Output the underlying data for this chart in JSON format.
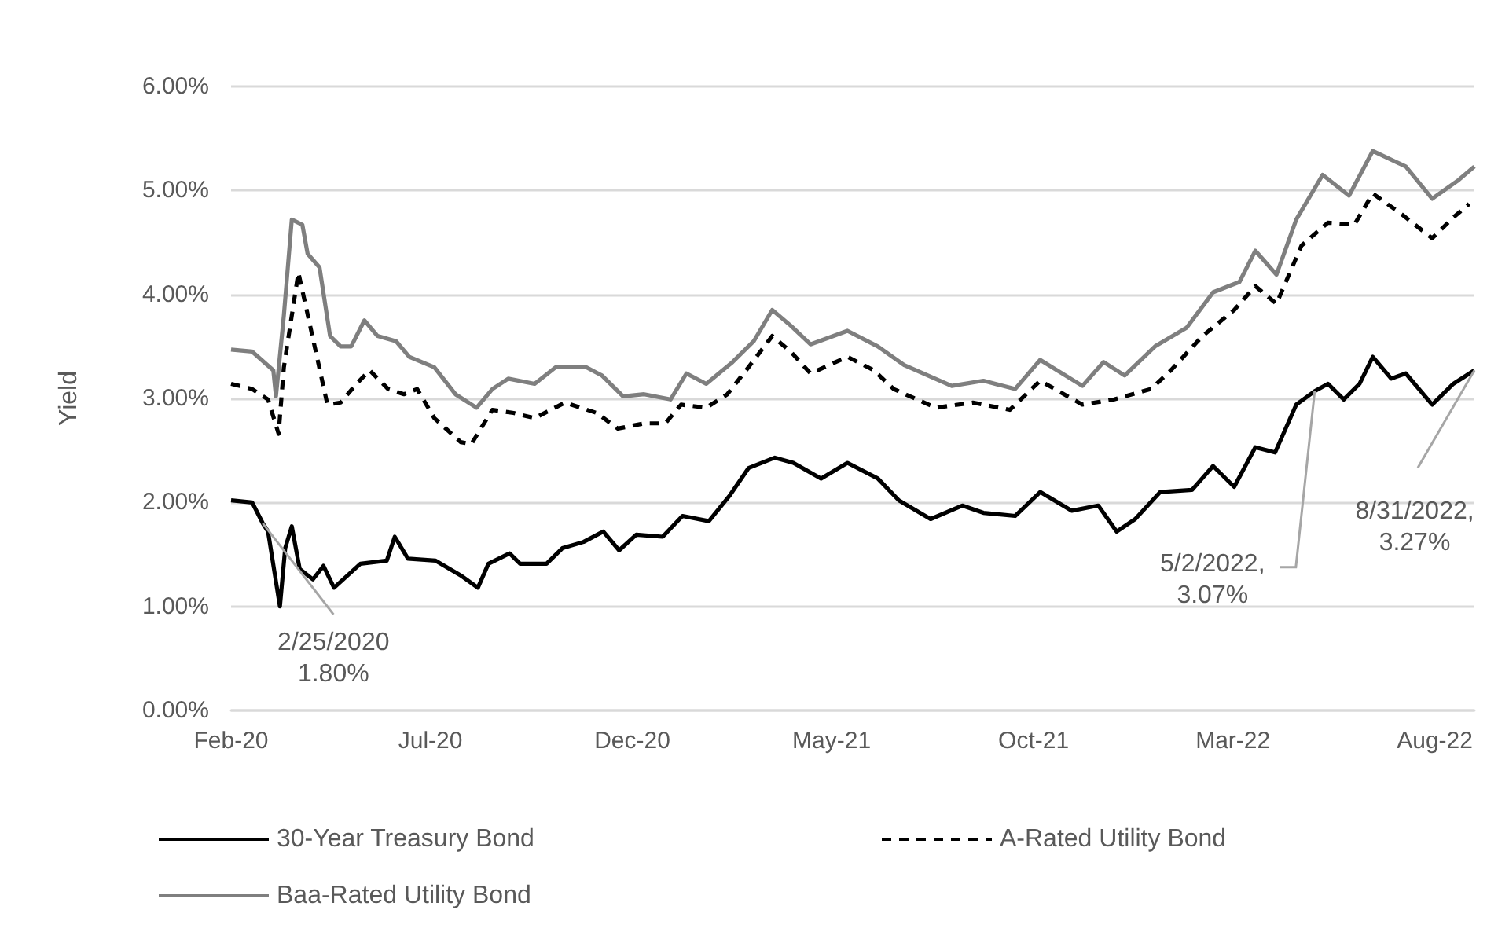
{
  "chart_data": {
    "type": "line",
    "ylabel": "Yield",
    "xlim": [
      "2020-02-01",
      "2022-08-31"
    ],
    "xticks": [
      {
        "value": "2020-02-01",
        "label": "Feb-20"
      },
      {
        "value": "2020-07-01",
        "label": "Jul-20"
      },
      {
        "value": "2020-12-01",
        "label": "Dec-20"
      },
      {
        "value": "2021-05-01",
        "label": "May-21"
      },
      {
        "value": "2021-10-01",
        "label": "Oct-21"
      },
      {
        "value": "2022-03-01",
        "label": "Mar-22"
      },
      {
        "value": "2022-08-01",
        "label": "Aug-22"
      }
    ],
    "ylim": [
      0,
      6
    ],
    "yticks": [
      {
        "value": 0,
        "label": "0.00%"
      },
      {
        "value": 1,
        "label": "1.00%"
      },
      {
        "value": 2,
        "label": "2.00%"
      },
      {
        "value": 3,
        "label": "3.00%"
      },
      {
        "value": 4,
        "label": "4.00%"
      },
      {
        "value": 5,
        "label": "5.00%"
      },
      {
        "value": 6,
        "label": "6.00%"
      }
    ],
    "grid": "y",
    "legend": "bottom",
    "marker": "none",
    "series": [
      {
        "name": "30-Year Treasury Bond",
        "color": "#000000",
        "line_style": "solid",
        "x": [
          "2020-02-01",
          "2020-02-17",
          "2020-02-25",
          "2020-02-29",
          "2020-03-09",
          "2020-03-13",
          "2020-03-18",
          "2020-03-24",
          "2020-04-03",
          "2020-04-11",
          "2020-04-19",
          "2020-05-09",
          "2020-05-29",
          "2020-06-04",
          "2020-06-14",
          "2020-07-05",
          "2020-07-25",
          "2020-08-06",
          "2020-08-14",
          "2020-08-30",
          "2020-09-07",
          "2020-09-27",
          "2020-10-09",
          "2020-10-25",
          "2020-11-09",
          "2020-11-21",
          "2020-12-04",
          "2020-12-24",
          "2021-01-08",
          "2021-01-28",
          "2021-02-13",
          "2021-02-27",
          "2021-03-19",
          "2021-04-02",
          "2021-04-23",
          "2021-05-13",
          "2021-06-05",
          "2021-06-21",
          "2021-07-15",
          "2021-08-08",
          "2021-08-24",
          "2021-09-17",
          "2021-10-06",
          "2021-10-30",
          "2021-11-19",
          "2021-12-03",
          "2021-12-17",
          "2022-01-05",
          "2022-01-29",
          "2022-02-14",
          "2022-03-02",
          "2022-03-18",
          "2022-04-02",
          "2022-04-18",
          "2022-05-02",
          "2022-05-12",
          "2022-05-24",
          "2022-06-05",
          "2022-06-15",
          "2022-06-29",
          "2022-07-10",
          "2022-07-30",
          "2022-08-15",
          "2022-08-31"
        ],
        "values": [
          2.02,
          2.0,
          1.8,
          1.72,
          1.0,
          1.56,
          1.77,
          1.36,
          1.26,
          1.39,
          1.18,
          1.41,
          1.44,
          1.67,
          1.46,
          1.44,
          1.29,
          1.18,
          1.41,
          1.51,
          1.41,
          1.41,
          1.56,
          1.62,
          1.72,
          1.54,
          1.69,
          1.67,
          1.87,
          1.82,
          2.07,
          2.33,
          2.43,
          2.38,
          2.23,
          2.38,
          2.23,
          2.02,
          1.84,
          1.97,
          1.9,
          1.87,
          2.1,
          1.92,
          1.97,
          1.72,
          1.84,
          2.1,
          2.12,
          2.35,
          2.15,
          2.53,
          2.48,
          2.94,
          3.07,
          3.14,
          2.99,
          3.14,
          3.4,
          3.19,
          3.24,
          2.94,
          3.14,
          3.27
        ]
      },
      {
        "name": "A-Rated Utility Bond",
        "color": "#000000",
        "line_style": "dashed",
        "x": [
          "2020-02-01",
          "2020-02-17",
          "2020-02-29",
          "2020-03-08",
          "2020-03-12",
          "2020-03-23",
          "2020-03-31",
          "2020-04-14",
          "2020-04-24",
          "2020-05-06",
          "2020-05-16",
          "2020-05-30",
          "2020-06-11",
          "2020-06-21",
          "2020-07-04",
          "2020-07-24",
          "2020-08-01",
          "2020-08-17",
          "2020-09-02",
          "2020-09-18",
          "2020-10-11",
          "2020-11-04",
          "2020-11-20",
          "2020-12-10",
          "2020-12-26",
          "2021-01-07",
          "2021-01-26",
          "2021-02-11",
          "2021-02-27",
          "2021-03-17",
          "2021-03-31",
          "2021-04-15",
          "2021-05-13",
          "2021-06-02",
          "2021-06-17",
          "2021-07-19",
          "2021-08-16",
          "2021-09-13",
          "2021-10-06",
          "2021-11-07",
          "2021-12-01",
          "2021-12-29",
          "2022-01-13",
          "2022-02-06",
          "2022-03-02",
          "2022-03-18",
          "2022-04-03",
          "2022-04-22",
          "2022-05-12",
          "2022-06-01",
          "2022-06-15",
          "2022-07-07",
          "2022-07-30",
          "2022-08-15",
          "2022-08-27"
        ],
        "values": [
          3.14,
          3.09,
          2.99,
          2.66,
          3.3,
          4.21,
          3.75,
          2.94,
          2.96,
          3.14,
          3.27,
          3.09,
          3.04,
          3.09,
          2.81,
          2.58,
          2.56,
          2.89,
          2.86,
          2.81,
          2.96,
          2.86,
          2.71,
          2.76,
          2.76,
          2.94,
          2.91,
          3.04,
          3.3,
          3.6,
          3.45,
          3.24,
          3.4,
          3.27,
          3.09,
          2.91,
          2.96,
          2.89,
          3.17,
          2.94,
          2.99,
          3.09,
          3.27,
          3.6,
          3.85,
          4.08,
          3.91,
          4.47,
          4.69,
          4.67,
          4.97,
          4.77,
          4.54,
          4.74,
          4.87
        ]
      },
      {
        "name": "Baa-Rated Utility Bond",
        "color": "#7f7f7f",
        "line_style": "solid",
        "x": [
          "2020-02-01",
          "2020-02-17",
          "2020-03-04",
          "2020-03-06",
          "2020-03-12",
          "2020-03-18",
          "2020-03-26",
          "2020-03-30",
          "2020-04-08",
          "2020-04-16",
          "2020-04-24",
          "2020-05-02",
          "2020-05-12",
          "2020-05-22",
          "2020-06-05",
          "2020-06-15",
          "2020-07-04",
          "2020-07-20",
          "2020-08-05",
          "2020-08-17",
          "2020-08-29",
          "2020-09-18",
          "2020-10-04",
          "2020-10-27",
          "2020-11-08",
          "2020-11-24",
          "2020-12-10",
          "2020-12-30",
          "2021-01-11",
          "2021-01-26",
          "2021-02-15",
          "2021-03-03",
          "2021-03-17",
          "2021-03-31",
          "2021-04-15",
          "2021-05-13",
          "2021-06-05",
          "2021-06-25",
          "2021-07-31",
          "2021-08-24",
          "2021-09-17",
          "2021-10-06",
          "2021-11-07",
          "2021-11-23",
          "2021-12-09",
          "2022-01-01",
          "2022-01-25",
          "2022-02-14",
          "2022-03-06",
          "2022-03-18",
          "2022-04-03",
          "2022-04-18",
          "2022-05-08",
          "2022-05-28",
          "2022-06-15",
          "2022-07-10",
          "2022-07-30",
          "2022-08-19",
          "2022-08-31"
        ],
        "values": [
          3.47,
          3.45,
          3.27,
          3.02,
          3.8,
          4.72,
          4.67,
          4.39,
          4.26,
          3.6,
          3.5,
          3.5,
          3.75,
          3.6,
          3.55,
          3.4,
          3.3,
          3.04,
          2.91,
          3.09,
          3.19,
          3.14,
          3.3,
          3.3,
          3.22,
          3.02,
          3.04,
          2.99,
          3.24,
          3.14,
          3.35,
          3.55,
          3.85,
          3.7,
          3.52,
          3.65,
          3.5,
          3.32,
          3.12,
          3.17,
          3.09,
          3.37,
          3.12,
          3.35,
          3.22,
          3.5,
          3.68,
          4.02,
          4.12,
          4.42,
          4.19,
          4.72,
          5.15,
          4.95,
          5.38,
          5.23,
          4.92,
          5.1,
          5.23
        ]
      }
    ],
    "annotations": [
      {
        "text": "2/25/2020\n1.80%",
        "x": "2020-02-25",
        "y": 1.8
      },
      {
        "text": "5/2/2022,\n3.07%",
        "x": "2022-05-02",
        "y": 3.07
      },
      {
        "text": "8/31/2022,\n3.27%",
        "x": "2022-08-31",
        "y": 3.27
      }
    ]
  }
}
